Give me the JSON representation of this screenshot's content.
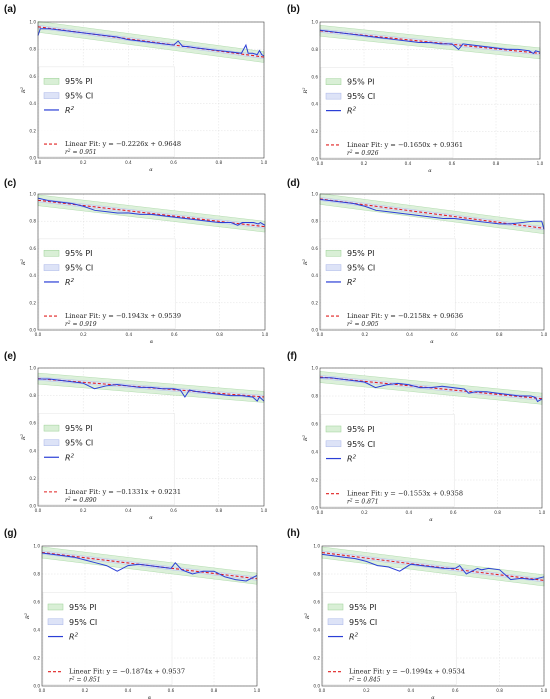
{
  "chart_data": [
    {
      "panel": "(a)",
      "type": "line",
      "xlabel": "α",
      "ylabel": "R²",
      "xlim": [
        0.0,
        1.0
      ],
      "ylim": [
        0.0,
        1.0
      ],
      "xticks": [
        "0.0",
        "0.2",
        "0.4",
        "0.6",
        "0.8",
        "1.0"
      ],
      "yticks": [
        "0.0",
        "0.2",
        "0.4",
        "0.6",
        "0.8",
        "1.0"
      ],
      "grid": true,
      "legend_position": "lower-left",
      "legend": [
        "95% PI",
        "95% CI",
        "R²"
      ],
      "fit_label": "Linear Fit: y = −0.2226x + 0.9648",
      "r2_label": "r² = 0.951",
      "fit": {
        "slope": -0.2226,
        "intercept": 0.9648
      },
      "pi_halfwidth": 0.04,
      "ci_halfwidth": 0.012,
      "series": {
        "x": [
          0.0,
          0.01,
          0.05,
          0.1,
          0.15,
          0.2,
          0.25,
          0.3,
          0.35,
          0.4,
          0.45,
          0.5,
          0.55,
          0.6,
          0.62,
          0.64,
          0.66,
          0.7,
          0.75,
          0.8,
          0.85,
          0.9,
          0.92,
          0.93,
          0.95,
          0.97,
          0.98,
          0.99,
          1.0
        ],
        "y": [
          0.9,
          0.95,
          0.95,
          0.94,
          0.93,
          0.92,
          0.91,
          0.9,
          0.89,
          0.87,
          0.86,
          0.85,
          0.84,
          0.83,
          0.86,
          0.82,
          0.82,
          0.81,
          0.8,
          0.79,
          0.78,
          0.77,
          0.83,
          0.77,
          0.77,
          0.76,
          0.79,
          0.76,
          0.75
        ]
      }
    },
    {
      "panel": "(b)",
      "type": "line",
      "xlabel": "α",
      "ylabel": "R²",
      "xlim": [
        0.0,
        1.0
      ],
      "ylim": [
        0.0,
        1.0
      ],
      "xticks": [
        "0.0",
        "0.2",
        "0.4",
        "0.6",
        "0.8",
        "1.0"
      ],
      "yticks": [
        "0.0",
        "0.2",
        "0.4",
        "0.6",
        "0.8",
        "1.0"
      ],
      "grid": true,
      "legend_position": "lower-left",
      "legend": [
        "95% PI",
        "95% CI",
        "R²"
      ],
      "fit_label": "Linear Fit: y = −0.1650x + 0.9361",
      "r2_label": "r² = 0.926",
      "fit": {
        "slope": -0.165,
        "intercept": 0.9361
      },
      "pi_halfwidth": 0.04,
      "ci_halfwidth": 0.012,
      "series": {
        "x": [
          0.0,
          0.05,
          0.1,
          0.15,
          0.2,
          0.25,
          0.3,
          0.35,
          0.4,
          0.45,
          0.5,
          0.55,
          0.6,
          0.63,
          0.65,
          0.7,
          0.75,
          0.8,
          0.85,
          0.9,
          0.95,
          0.97,
          0.98,
          1.0
        ],
        "y": [
          0.94,
          0.93,
          0.92,
          0.91,
          0.9,
          0.89,
          0.88,
          0.87,
          0.86,
          0.85,
          0.85,
          0.84,
          0.84,
          0.8,
          0.84,
          0.83,
          0.82,
          0.81,
          0.8,
          0.8,
          0.79,
          0.77,
          0.79,
          0.78
        ]
      }
    },
    {
      "panel": "(c)",
      "type": "line",
      "xlabel": "α",
      "ylabel": "R²",
      "xlim": [
        0.0,
        1.0
      ],
      "ylim": [
        0.0,
        1.0
      ],
      "xticks": [
        "0.0",
        "0.2",
        "0.4",
        "0.6",
        "0.8",
        "1.0"
      ],
      "yticks": [
        "0.0",
        "0.2",
        "0.4",
        "0.6",
        "0.8",
        "1.0"
      ],
      "grid": true,
      "legend_position": "lower-left",
      "legend": [
        "95% PI",
        "95% CI",
        "R²"
      ],
      "fit_label": "Linear Fit: y = −0.1943x + 0.9539",
      "r2_label": "r² = 0.919",
      "fit": {
        "slope": -0.1943,
        "intercept": 0.9539
      },
      "pi_halfwidth": 0.04,
      "ci_halfwidth": 0.012,
      "series": {
        "x": [
          0.0,
          0.05,
          0.1,
          0.15,
          0.2,
          0.25,
          0.3,
          0.35,
          0.4,
          0.45,
          0.5,
          0.55,
          0.6,
          0.65,
          0.7,
          0.75,
          0.8,
          0.85,
          0.88,
          0.9,
          0.95,
          0.97,
          0.98,
          1.0
        ],
        "y": [
          0.97,
          0.95,
          0.94,
          0.93,
          0.91,
          0.88,
          0.87,
          0.86,
          0.86,
          0.85,
          0.85,
          0.84,
          0.83,
          0.82,
          0.81,
          0.8,
          0.79,
          0.79,
          0.77,
          0.79,
          0.79,
          0.78,
          0.79,
          0.77
        ]
      }
    },
    {
      "panel": "(d)",
      "type": "line",
      "xlabel": "α",
      "ylabel": "R²",
      "xlim": [
        0.0,
        1.0
      ],
      "ylim": [
        0.0,
        1.0
      ],
      "xticks": [
        "0.0",
        "0.2",
        "0.4",
        "0.6",
        "0.8",
        "1.0"
      ],
      "yticks": [
        "0.0",
        "0.2",
        "0.4",
        "0.6",
        "0.8",
        "1.0"
      ],
      "grid": true,
      "legend_position": "lower-left",
      "legend": [
        "95% PI",
        "95% CI",
        "R²"
      ],
      "fit_label": "Linear Fit: y = −0.2158x + 0.9636",
      "r2_label": "r² = 0.905",
      "fit": {
        "slope": -0.2158,
        "intercept": 0.9636
      },
      "pi_halfwidth": 0.04,
      "ci_halfwidth": 0.012,
      "series": {
        "x": [
          0.0,
          0.05,
          0.1,
          0.15,
          0.2,
          0.25,
          0.3,
          0.35,
          0.4,
          0.45,
          0.5,
          0.55,
          0.6,
          0.65,
          0.7,
          0.75,
          0.8,
          0.85,
          0.9,
          0.95,
          0.97,
          0.99,
          1.0
        ],
        "y": [
          0.96,
          0.95,
          0.94,
          0.93,
          0.91,
          0.88,
          0.87,
          0.86,
          0.85,
          0.84,
          0.83,
          0.82,
          0.82,
          0.81,
          0.8,
          0.79,
          0.78,
          0.78,
          0.79,
          0.8,
          0.8,
          0.8,
          0.74
        ]
      }
    },
    {
      "panel": "(e)",
      "type": "line",
      "xlabel": "α",
      "ylabel": "R²",
      "xlim": [
        0.0,
        1.0
      ],
      "ylim": [
        0.0,
        1.0
      ],
      "xticks": [
        "0.0",
        "0.2",
        "0.4",
        "0.6",
        "0.8",
        "1.0"
      ],
      "yticks": [
        "0.0",
        "0.2",
        "0.4",
        "0.6",
        "0.8",
        "1.0"
      ],
      "grid": true,
      "legend_position": "lower-left",
      "legend": [
        "95% PI",
        "95% CI",
        "R²"
      ],
      "fit_label": "Linear Fit: y = −0.1331x + 0.9231",
      "r2_label": "r² = 0.890",
      "fit": {
        "slope": -0.1331,
        "intercept": 0.9231
      },
      "pi_halfwidth": 0.04,
      "ci_halfwidth": 0.012,
      "series": {
        "x": [
          0.0,
          0.05,
          0.1,
          0.15,
          0.2,
          0.25,
          0.3,
          0.35,
          0.4,
          0.45,
          0.5,
          0.55,
          0.6,
          0.63,
          0.65,
          0.67,
          0.7,
          0.75,
          0.8,
          0.85,
          0.9,
          0.95,
          0.97,
          0.98,
          1.0
        ],
        "y": [
          0.92,
          0.92,
          0.91,
          0.9,
          0.89,
          0.85,
          0.87,
          0.88,
          0.87,
          0.86,
          0.86,
          0.85,
          0.85,
          0.84,
          0.79,
          0.84,
          0.83,
          0.82,
          0.81,
          0.8,
          0.8,
          0.79,
          0.76,
          0.79,
          0.76
        ]
      }
    },
    {
      "panel": "(f)",
      "type": "line",
      "xlabel": "α",
      "ylabel": "R²",
      "xlim": [
        0.0,
        1.0
      ],
      "ylim": [
        0.0,
        1.0
      ],
      "xticks": [
        "0.0",
        "0.2",
        "0.4",
        "0.6",
        "0.8",
        "1.0"
      ],
      "yticks": [
        "0.0",
        "0.2",
        "0.4",
        "0.6",
        "0.8",
        "1.0"
      ],
      "grid": true,
      "legend_position": "lower-left",
      "legend": [
        "95% PI",
        "95% CI",
        "R²"
      ],
      "fit_label": "Linear Fit: y = −0.1553x + 0.9358",
      "r2_label": "r² = 0.871",
      "fit": {
        "slope": -0.1553,
        "intercept": 0.9358
      },
      "pi_halfwidth": 0.04,
      "ci_halfwidth": 0.012,
      "series": {
        "x": [
          0.0,
          0.05,
          0.1,
          0.15,
          0.2,
          0.25,
          0.3,
          0.35,
          0.4,
          0.45,
          0.5,
          0.55,
          0.6,
          0.65,
          0.67,
          0.7,
          0.75,
          0.8,
          0.85,
          0.9,
          0.95,
          0.97,
          0.98,
          1.0
        ],
        "y": [
          0.93,
          0.93,
          0.92,
          0.91,
          0.9,
          0.86,
          0.88,
          0.89,
          0.88,
          0.86,
          0.86,
          0.87,
          0.86,
          0.85,
          0.82,
          0.83,
          0.83,
          0.82,
          0.81,
          0.8,
          0.8,
          0.79,
          0.76,
          0.78
        ]
      }
    },
    {
      "panel": "(g)",
      "type": "line",
      "xlabel": "α",
      "ylabel": "R²",
      "xlim": [
        0.0,
        1.0
      ],
      "ylim": [
        0.0,
        1.0
      ],
      "xticks": [
        "0.0",
        "0.2",
        "0.4",
        "0.6",
        "0.8",
        "1.0"
      ],
      "yticks": [
        "0.0",
        "0.2",
        "0.4",
        "0.6",
        "0.8",
        "1.0"
      ],
      "grid": true,
      "legend_position": "lower-left",
      "legend": [
        "95% PI",
        "95% CI",
        "R²"
      ],
      "fit_label": "Linear Fit: y = −0.1874x + 0.9537",
      "r2_label": "r² = 0.851",
      "fit": {
        "slope": -0.1874,
        "intercept": 0.9537
      },
      "pi_halfwidth": 0.04,
      "ci_halfwidth": 0.012,
      "series": {
        "x": [
          0.0,
          0.05,
          0.1,
          0.15,
          0.2,
          0.25,
          0.3,
          0.35,
          0.4,
          0.45,
          0.5,
          0.55,
          0.6,
          0.62,
          0.65,
          0.7,
          0.75,
          0.8,
          0.85,
          0.9,
          0.95,
          1.0
        ],
        "y": [
          0.95,
          0.94,
          0.93,
          0.92,
          0.9,
          0.88,
          0.86,
          0.82,
          0.86,
          0.87,
          0.86,
          0.85,
          0.84,
          0.88,
          0.83,
          0.8,
          0.82,
          0.82,
          0.78,
          0.76,
          0.75,
          0.79
        ]
      }
    },
    {
      "panel": "(h)",
      "type": "line",
      "xlabel": "α",
      "ylabel": "R²",
      "xlim": [
        0.0,
        1.0
      ],
      "ylim": [
        0.0,
        1.0
      ],
      "xticks": [
        "0.0",
        "0.2",
        "0.4",
        "0.6",
        "0.8",
        "1.0"
      ],
      "yticks": [
        "0.0",
        "0.2",
        "0.4",
        "0.6",
        "0.8",
        "1.0"
      ],
      "grid": true,
      "legend_position": "lower-left",
      "legend": [
        "95% PI",
        "95% CI",
        "R²"
      ],
      "fit_label": "Linear Fit: y = −0.1994x + 0.9534",
      "r2_label": "r² = 0.845",
      "fit": {
        "slope": -0.1994,
        "intercept": 0.9534
      },
      "pi_halfwidth": 0.04,
      "ci_halfwidth": 0.012,
      "series": {
        "x": [
          0.0,
          0.05,
          0.1,
          0.15,
          0.2,
          0.25,
          0.3,
          0.35,
          0.4,
          0.45,
          0.5,
          0.55,
          0.6,
          0.62,
          0.65,
          0.7,
          0.72,
          0.75,
          0.8,
          0.85,
          0.9,
          0.95,
          1.0
        ],
        "y": [
          0.94,
          0.93,
          0.92,
          0.91,
          0.89,
          0.86,
          0.85,
          0.82,
          0.87,
          0.86,
          0.85,
          0.84,
          0.84,
          0.86,
          0.8,
          0.84,
          0.83,
          0.84,
          0.83,
          0.76,
          0.77,
          0.76,
          0.78
        ]
      }
    }
  ],
  "colors": {
    "pi_fill": "#d9efd6",
    "pi_edge": "#9bd196",
    "ci_fill": "#dde3f7",
    "ci_edge": "#a9b6e8",
    "series": "#2b3fd6",
    "fit": "#e02020",
    "grid": "#d8d8d8",
    "axis": "#444444"
  }
}
